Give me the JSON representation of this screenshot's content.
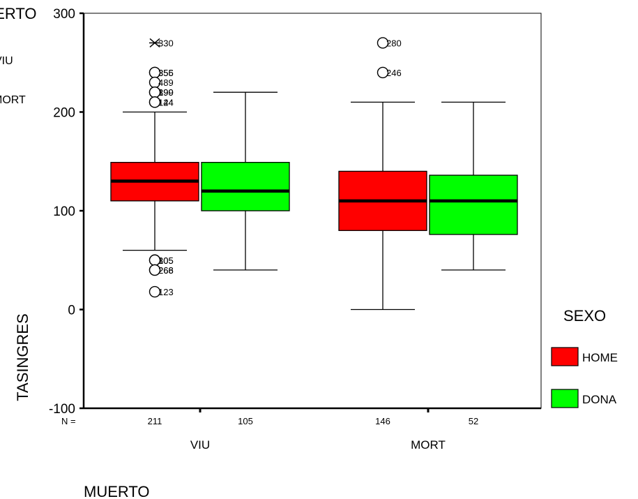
{
  "chart_data": {
    "type": "boxplot",
    "ylabel": "TASINGRES",
    "xlabel": "MUERTO",
    "ylim": [
      -100,
      300
    ],
    "yticks": [
      -100,
      0,
      100,
      200,
      300
    ],
    "n_label": "N =",
    "groups": [
      "VIU",
      "MORT"
    ],
    "legend": {
      "title": "SEXO",
      "position": "right",
      "entries": [
        {
          "name": "HOME",
          "color": "#ff0000"
        },
        {
          "name": "DONA",
          "color": "#00ff00"
        }
      ]
    },
    "top_left_legend": {
      "title": "MUERTO",
      "entries": [
        "VIU",
        "MORT"
      ]
    },
    "boxes": [
      {
        "group": "VIU",
        "series": "HOME",
        "n": "211",
        "min": 60,
        "q1": 110,
        "median": 130,
        "q3": 149,
        "max": 200,
        "outliers": [
          {
            "value": 270,
            "label": "330",
            "marker": "extreme"
          },
          {
            "value": 240,
            "label": "356",
            "marker": "circle"
          },
          {
            "value": 240,
            "label": "355",
            "marker": "circle"
          },
          {
            "value": 230,
            "label": "489",
            "marker": "circle"
          },
          {
            "value": 220,
            "label": "390",
            "marker": "circle"
          },
          {
            "value": 220,
            "label": "199",
            "marker": "circle"
          },
          {
            "value": 210,
            "label": "144",
            "marker": "circle"
          },
          {
            "value": 210,
            "label": "124",
            "marker": "circle"
          },
          {
            "value": 50,
            "label": "305",
            "marker": "circle"
          },
          {
            "value": 50,
            "label": "105",
            "marker": "circle"
          },
          {
            "value": 40,
            "label": "268",
            "marker": "circle"
          },
          {
            "value": 40,
            "label": "266",
            "marker": "circle"
          },
          {
            "value": 18,
            "label": "123",
            "marker": "circle"
          }
        ]
      },
      {
        "group": "VIU",
        "series": "DONA",
        "n": "105",
        "min": 40,
        "q1": 100,
        "median": 120,
        "q3": 149,
        "max": 220,
        "outliers": []
      },
      {
        "group": "MORT",
        "series": "HOME",
        "n": "146",
        "min": 0,
        "q1": 80,
        "median": 110,
        "q3": 140,
        "max": 210,
        "outliers": [
          {
            "value": 270,
            "label": "280",
            "marker": "circle"
          },
          {
            "value": 240,
            "label": "246",
            "marker": "circle"
          }
        ]
      },
      {
        "group": "MORT",
        "series": "DONA",
        "n": "52",
        "min": 40,
        "q1": 76,
        "median": 110,
        "q3": 136,
        "max": 210,
        "outliers": []
      }
    ]
  }
}
